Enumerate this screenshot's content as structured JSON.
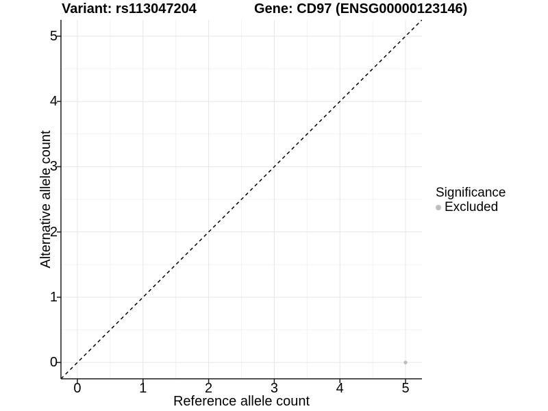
{
  "chart_data": {
    "type": "scatter",
    "title_left": "Variant: rs113047204",
    "title_right": "Gene: CD97 (ENSG00000123146)",
    "xlabel": "Reference allele count",
    "ylabel": "Alternative allele count",
    "xlim": [
      -0.25,
      5.25
    ],
    "ylim": [
      -0.25,
      5.25
    ],
    "x_ticks": [
      0,
      1,
      2,
      3,
      4,
      5
    ],
    "y_ticks": [
      0,
      1,
      2,
      3,
      4,
      5
    ],
    "x_minor_ticks": [
      0.5,
      1.5,
      2.5,
      3.5,
      4.5
    ],
    "y_minor_ticks": [
      0.5,
      1.5,
      2.5,
      3.5,
      4.5
    ],
    "grid": true,
    "identity_line": {
      "style": "dashed",
      "color": "#000000",
      "slope": 1,
      "intercept": 0
    },
    "series": [
      {
        "name": "Excluded",
        "color": "#bebebe",
        "points": [
          {
            "x": 5,
            "y": 0
          }
        ]
      }
    ],
    "legend": {
      "title": "Significance",
      "position": "right",
      "items": [
        {
          "label": "Excluded",
          "color": "#bebebe"
        }
      ]
    }
  },
  "colors": {
    "grid_major": "#e5e5e5",
    "grid_minor": "#f2f2f2",
    "axis": "#1a1a1a",
    "text": "#000000"
  }
}
